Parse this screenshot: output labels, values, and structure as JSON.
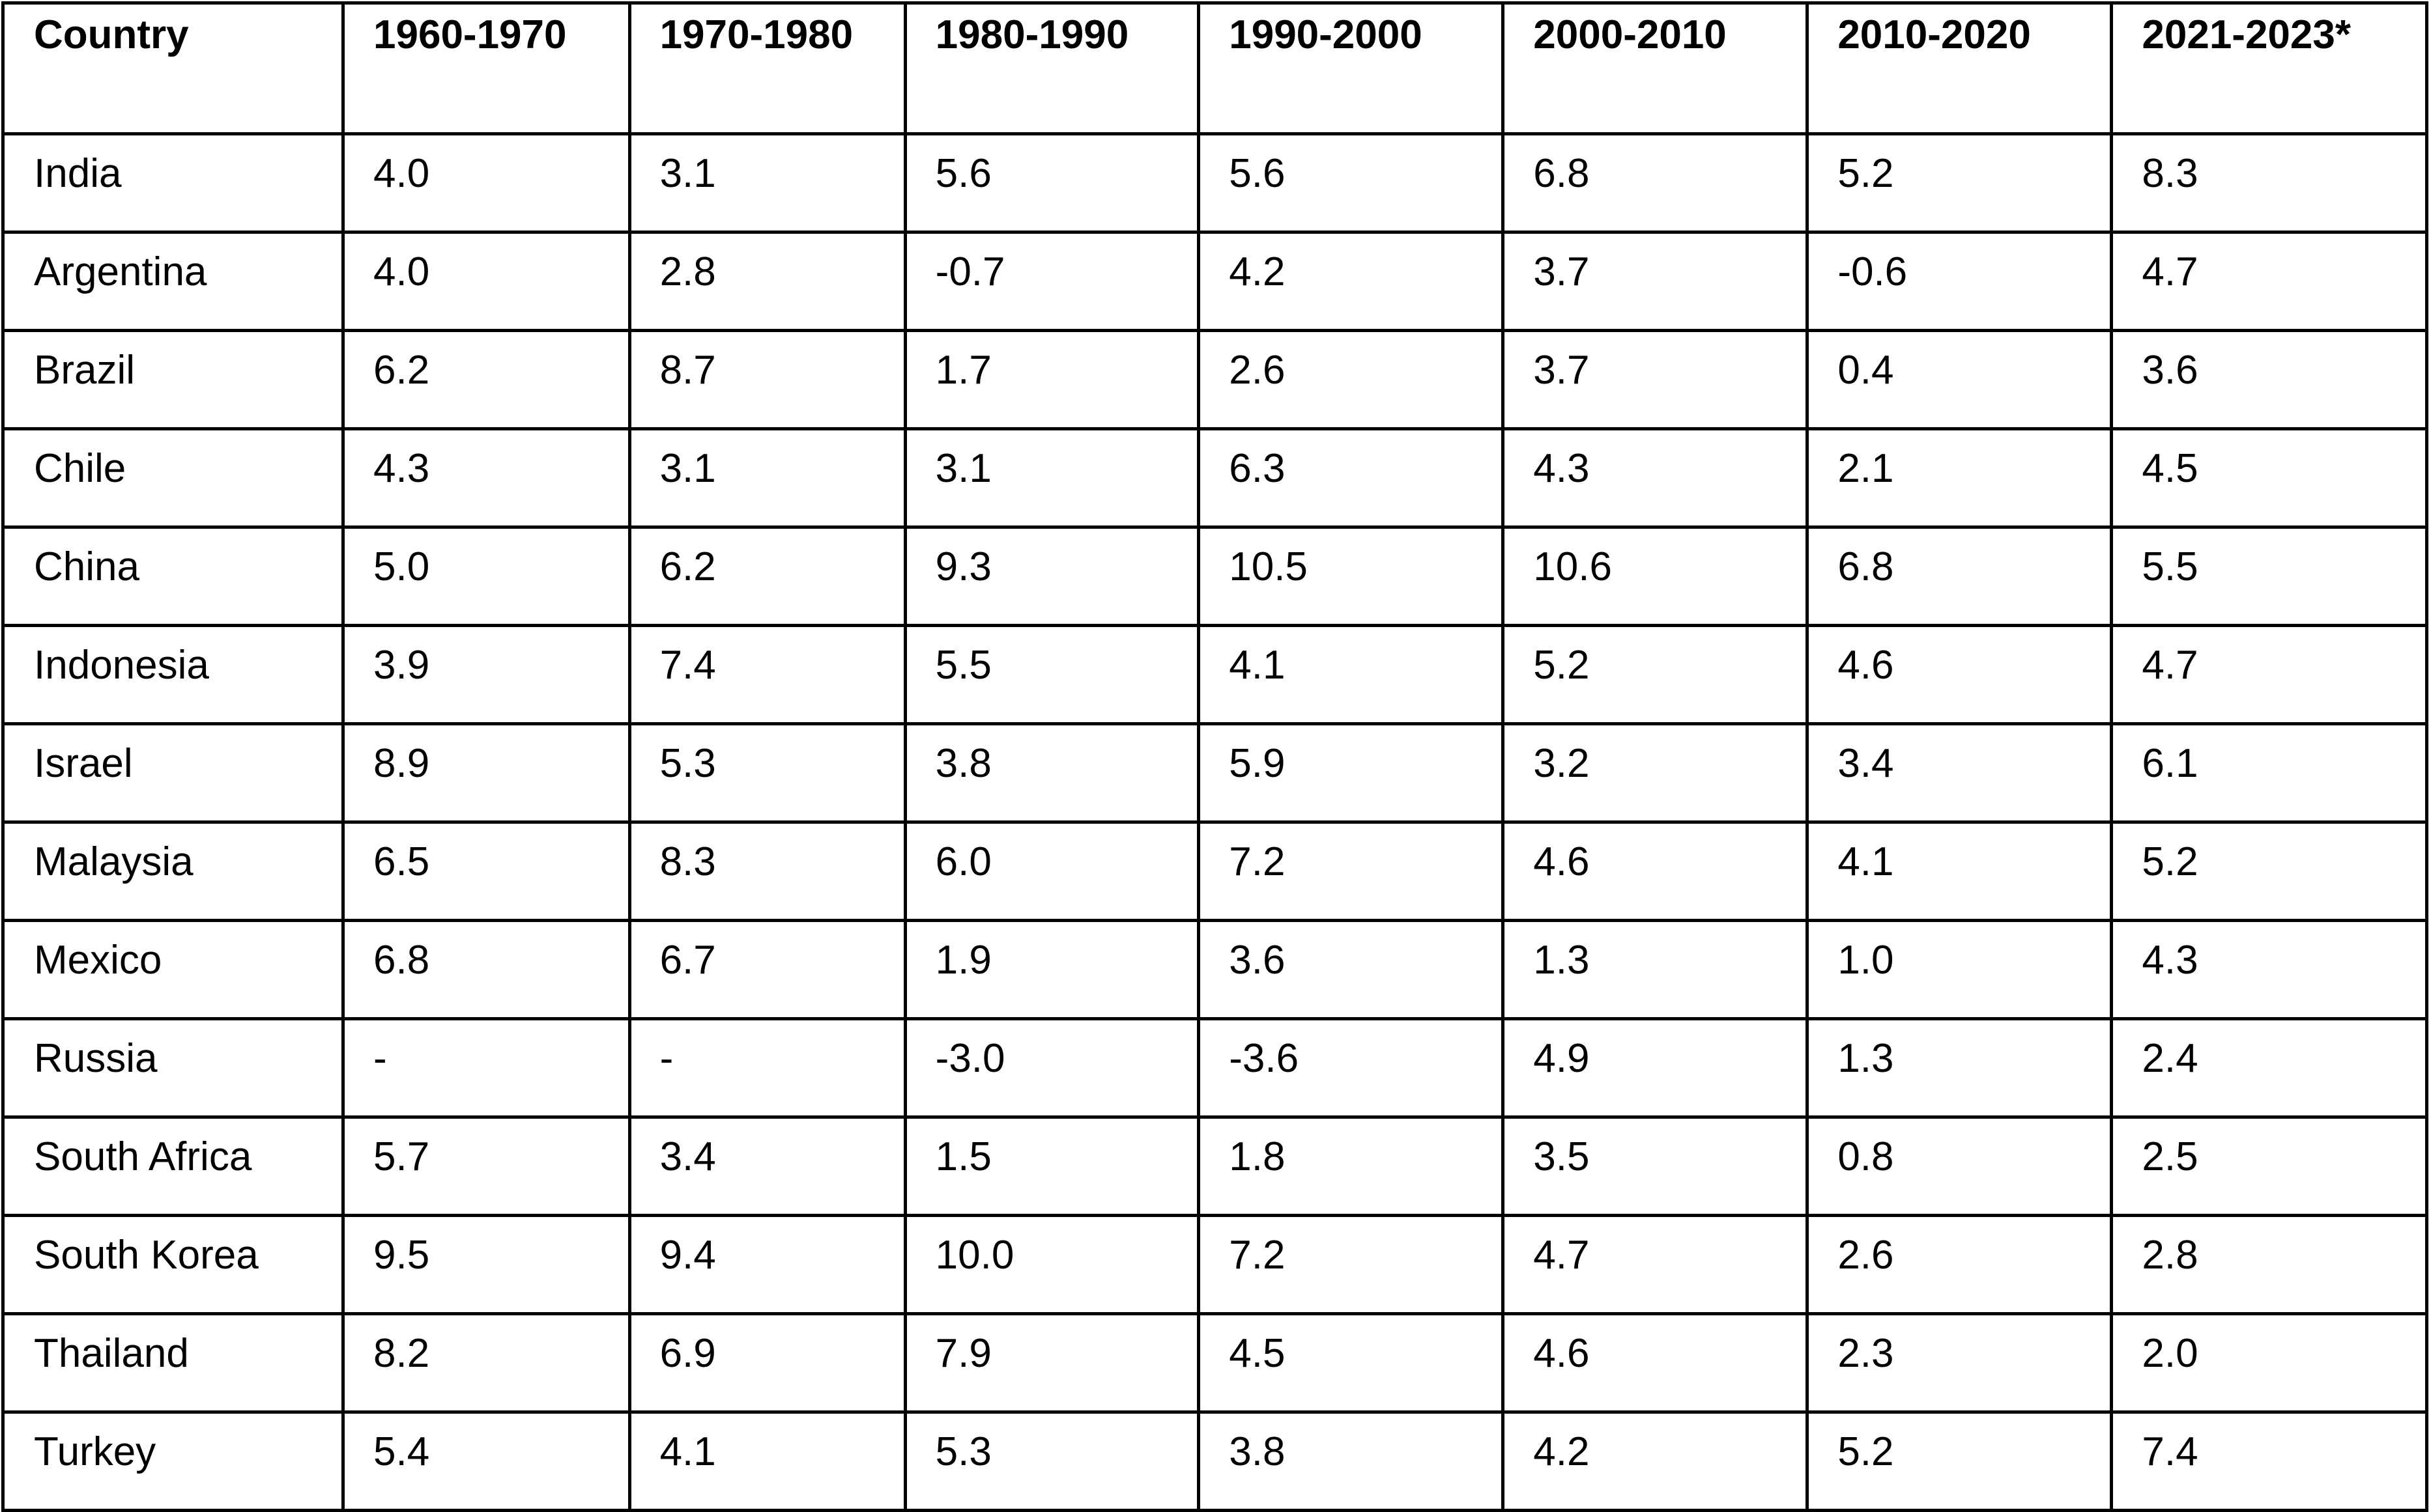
{
  "table": {
    "headers": [
      "Country",
      "1960-1970",
      "1970-1980",
      "1980-1990",
      "1990-2000",
      "2000-2010",
      "2010-2020",
      "2021-2023*"
    ],
    "rows": [
      [
        "India",
        "4.0",
        "3.1",
        "5.6",
        "5.6",
        "6.8",
        "5.2",
        "8.3"
      ],
      [
        "Argentina",
        "4.0",
        "2.8",
        "-0.7",
        "4.2",
        "3.7",
        "-0.6",
        "4.7"
      ],
      [
        "Brazil",
        "6.2",
        "8.7",
        "1.7",
        "2.6",
        "3.7",
        "0.4",
        "3.6"
      ],
      [
        "Chile",
        "4.3",
        "3.1",
        "3.1",
        "6.3",
        "4.3",
        "2.1",
        "4.5"
      ],
      [
        "China",
        "5.0",
        "6.2",
        "9.3",
        "10.5",
        "10.6",
        "6.8",
        "5.5"
      ],
      [
        "Indonesia",
        "3.9",
        "7.4",
        "5.5",
        "4.1",
        "5.2",
        "4.6",
        "4.7"
      ],
      [
        "Israel",
        "8.9",
        "5.3",
        "3.8",
        "5.9",
        "3.2",
        "3.4",
        "6.1"
      ],
      [
        "Malaysia",
        "6.5",
        "8.3",
        "6.0",
        "7.2",
        "4.6",
        "4.1",
        "5.2"
      ],
      [
        "Mexico",
        "6.8",
        "6.7",
        "1.9",
        "3.6",
        "1.3",
        "1.0",
        "4.3"
      ],
      [
        "Russia",
        "-",
        "-",
        "-3.0",
        "-3.6",
        "4.9",
        "1.3",
        "2.4"
      ],
      [
        "South Africa",
        "5.7",
        "3.4",
        "1.5",
        "1.8",
        "3.5",
        "0.8",
        "2.5"
      ],
      [
        "South Korea",
        "9.5",
        "9.4",
        "10.0",
        "7.2",
        "4.7",
        "2.6",
        "2.8"
      ],
      [
        "Thailand",
        "8.2",
        "6.9",
        "7.9",
        "4.5",
        "4.6",
        "2.3",
        "2.0"
      ],
      [
        "Turkey",
        "5.4",
        "4.1",
        "5.3",
        "3.8",
        "4.2",
        "5.2",
        "7.4"
      ]
    ]
  }
}
